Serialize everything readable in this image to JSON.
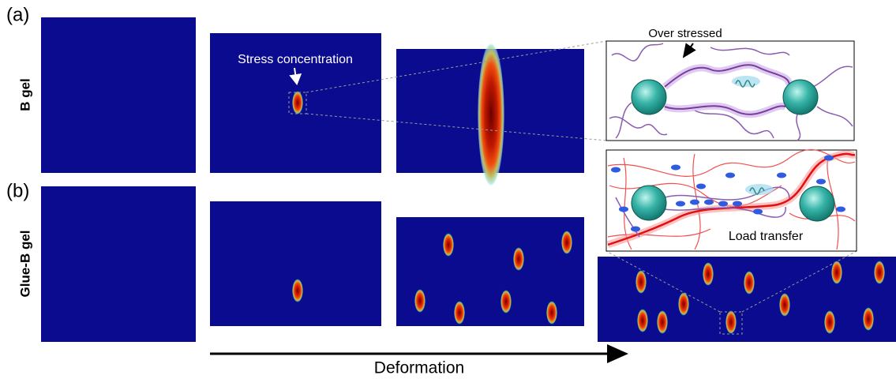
{
  "panel_labels": [
    "(a)",
    "(b)"
  ],
  "row_labels": [
    "B gel",
    "Glue-B gel"
  ],
  "annotations": {
    "stress": "Stress concentration",
    "over": "Over stressed",
    "load": "Load transfer"
  },
  "axis_label": "Deformation"
}
